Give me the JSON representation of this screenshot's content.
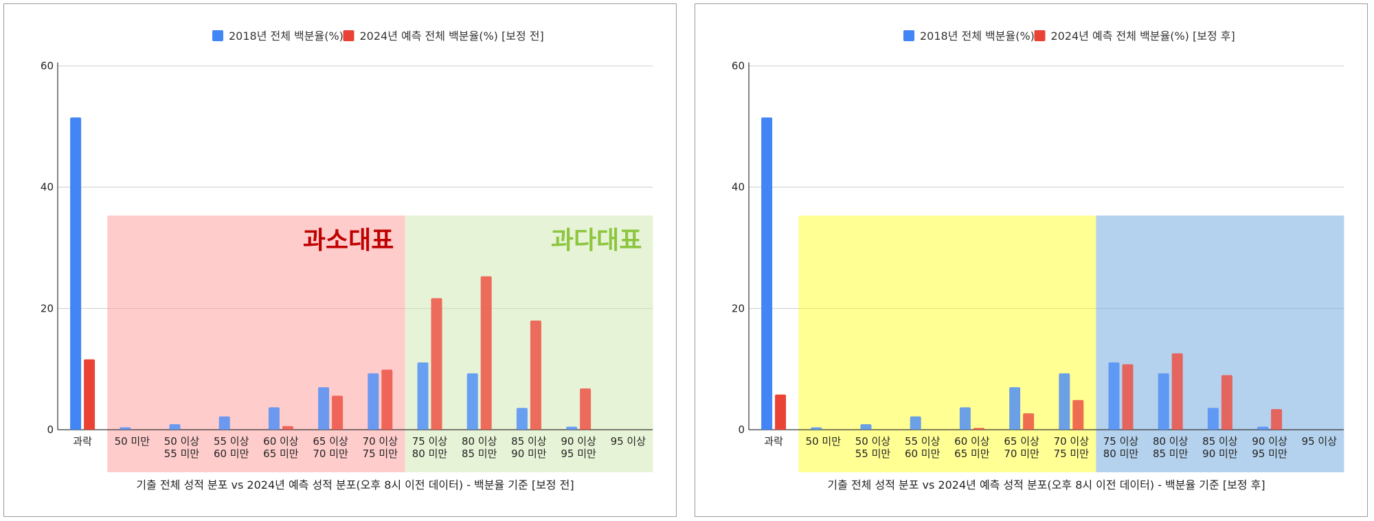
{
  "chart_data": [
    {
      "type": "bar",
      "title": "기출 전체 성적 분포 vs 2024년 예측 성적 분포(오후 8시 이전 데이터) - 백분율 기준 [보정 전]",
      "categories": [
        "과락",
        "50 미만",
        "50 이상\n55 미만",
        "55 이상\n60 미만",
        "60 이상\n65 미만",
        "65 이상\n70 미만",
        "70 이상\n75 미만",
        "75 이상\n80 미만",
        "80 이상\n85 미만",
        "85 이상\n90 미만",
        "90 이상\n95 미만",
        "95 이상"
      ],
      "series": [
        {
          "name": "2018년 전체 백분율(%)",
          "color": "#4285f4",
          "values": [
            51.5,
            0.4,
            0.9,
            2.2,
            3.7,
            7.0,
            9.3,
            11.1,
            9.3,
            3.6,
            0.5,
            0
          ]
        },
        {
          "name": "2024년 예측 전체 백분율(%) [보정 전]",
          "color": "#ea4335",
          "values": [
            11.6,
            0,
            0,
            0,
            0.6,
            5.6,
            9.9,
            21.7,
            25.3,
            18.0,
            6.8,
            0
          ]
        }
      ],
      "ylim": [
        0,
        60
      ],
      "yticks": [
        0,
        20,
        40,
        60
      ],
      "grid": true,
      "legend": "top",
      "regions": [
        {
          "label": "과소대표",
          "from": 1,
          "to": 6,
          "fill": "#ff9999",
          "opacity": 0.5,
          "text_color": "#c00000"
        },
        {
          "label": "과다대표",
          "from": 7,
          "to": 11,
          "fill": "#cfe8b0",
          "opacity": 0.5,
          "text_color": "#8cc63f"
        }
      ]
    },
    {
      "type": "bar",
      "title": "기출 전체 성적 분포 vs 2024년 예측 성적 분포(오후 8시 이전 데이터) - 백분율 기준 [보정 후]",
      "categories": [
        "과락",
        "50 미만",
        "50 이상\n55 미만",
        "55 이상\n60 미만",
        "60 이상\n65 미만",
        "65 이상\n70 미만",
        "70 이상\n75 미만",
        "75 이상\n80 미만",
        "80 이상\n85 미만",
        "85 이상\n90 미만",
        "90 이상\n95 미만",
        "95 이상"
      ],
      "series": [
        {
          "name": "2018년 전체 백분율(%)",
          "color": "#4285f4",
          "values": [
            51.5,
            0.4,
            0.9,
            2.2,
            3.7,
            7.0,
            9.3,
            11.1,
            9.3,
            3.6,
            0.5,
            0
          ]
        },
        {
          "name": "2024년 예측 전체 백분율(%) [보정 후]",
          "color": "#ea4335",
          "values": [
            5.8,
            0,
            0,
            0,
            0.3,
            2.7,
            4.9,
            10.8,
            12.6,
            9.0,
            3.4,
            0
          ]
        }
      ],
      "ylim": [
        0,
        60
      ],
      "yticks": [
        0,
        20,
        40,
        60
      ],
      "grid": true,
      "legend": "top",
      "regions": [
        {
          "label": "",
          "from": 1,
          "to": 6,
          "fill": "#ffff00",
          "opacity": 0.42,
          "text_color": "#000000"
        },
        {
          "label": "",
          "from": 7,
          "to": 11,
          "fill": "#6fa8dc",
          "opacity": 0.52,
          "text_color": "#000000"
        }
      ]
    }
  ]
}
